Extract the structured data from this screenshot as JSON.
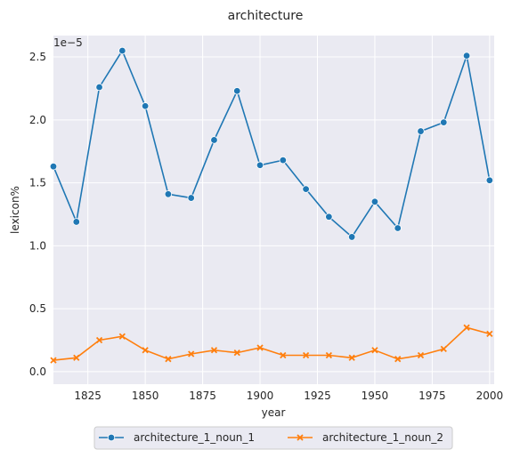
{
  "chart_data": {
    "type": "line",
    "title": "architecture",
    "xlabel": "year",
    "ylabel": "lexicon%",
    "y_offset_label": "1e−5",
    "xlim": [
      1810,
      2002
    ],
    "ylim": [
      -0.1,
      2.67
    ],
    "x_ticks": [
      1825,
      1850,
      1875,
      1900,
      1925,
      1950,
      1975,
      2000
    ],
    "y_ticks": [
      0.0,
      0.5,
      1.0,
      1.5,
      2.0,
      2.5
    ],
    "y_tick_labels": [
      "0.0",
      "0.5",
      "1.0",
      "1.5",
      "2.0",
      "2.5"
    ],
    "grid": true,
    "legend_position": "bottom-center",
    "x": [
      1810,
      1820,
      1830,
      1840,
      1850,
      1860,
      1870,
      1880,
      1890,
      1900,
      1910,
      1920,
      1930,
      1940,
      1950,
      1960,
      1970,
      1980,
      1990,
      2000
    ],
    "series": [
      {
        "name": "architecture_1_noun_1",
        "color": "#1f77b4",
        "marker": "circle",
        "values": [
          1.63,
          1.19,
          2.26,
          2.55,
          2.11,
          1.41,
          1.38,
          1.84,
          2.23,
          1.64,
          1.68,
          1.45,
          1.23,
          1.07,
          1.35,
          1.14,
          1.91,
          1.98,
          2.51,
          1.52
        ]
      },
      {
        "name": "architecture_1_noun_2",
        "color": "#ff7f0e",
        "marker": "x",
        "values": [
          0.09,
          0.11,
          0.25,
          0.28,
          0.17,
          0.1,
          0.14,
          0.17,
          0.15,
          0.19,
          0.13,
          0.13,
          0.13,
          0.11,
          0.17,
          0.1,
          0.13,
          0.18,
          0.35,
          0.3
        ]
      }
    ]
  }
}
